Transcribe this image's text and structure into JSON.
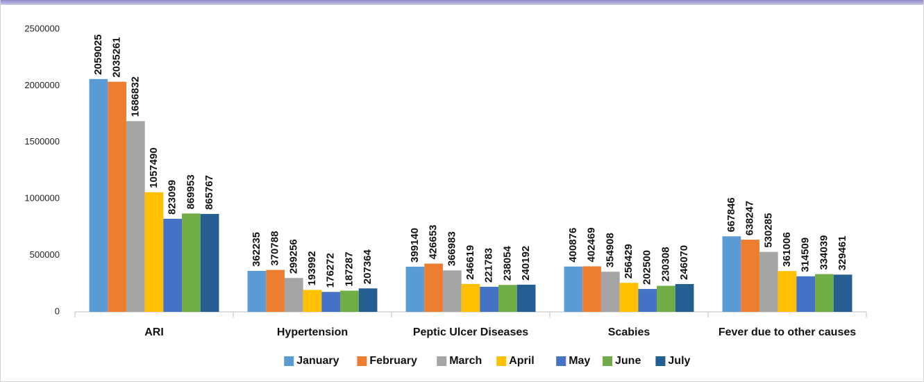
{
  "chart_data": {
    "type": "bar",
    "categories": [
      "ARI",
      "Hypertension",
      "Peptic Ulcer Diseases",
      "Scabies",
      "Fever due to other causes"
    ],
    "series": [
      {
        "name": "January",
        "color": "#5b9bd5",
        "values": [
          2059025,
          362235,
          399140,
          400876,
          667846
        ]
      },
      {
        "name": "February",
        "color": "#ed7d31",
        "values": [
          2035261,
          370788,
          426653,
          402469,
          638247
        ]
      },
      {
        "name": "March",
        "color": "#a5a5a5",
        "values": [
          1686832,
          299256,
          366983,
          354908,
          530285
        ]
      },
      {
        "name": "April",
        "color": "#ffc000",
        "values": [
          1057490,
          193992,
          246619,
          256429,
          361006
        ]
      },
      {
        "name": "May",
        "color": "#4472c4",
        "values": [
          823099,
          176272,
          221783,
          202500,
          314509
        ]
      },
      {
        "name": "June",
        "color": "#70ad47",
        "values": [
          869953,
          187287,
          238054,
          230308,
          334039
        ]
      },
      {
        "name": "July",
        "color": "#255e91",
        "values": [
          865767,
          207364,
          240192,
          246070,
          329461
        ]
      }
    ],
    "ylim": [
      0,
      2500000
    ],
    "yticks": [
      0,
      500000,
      1000000,
      1500000,
      2000000,
      2500000
    ],
    "legend": "bottom"
  }
}
